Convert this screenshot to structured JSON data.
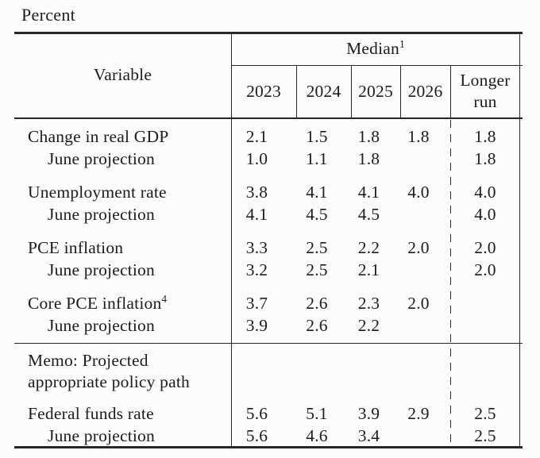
{
  "title": "Percent",
  "table": {
    "header": {
      "variable_label": "Variable",
      "median_label": "Median",
      "median_sup": "1",
      "years": [
        "2023",
        "2024",
        "2025",
        "2026"
      ],
      "longer_run_lines": [
        "Longer",
        "run"
      ]
    },
    "rows": [
      {
        "label": "Change in real GDP",
        "indent": false,
        "group_start": true,
        "values": [
          "2.1",
          "1.5",
          "1.8",
          "1.8"
        ],
        "longer_run": "1.8"
      },
      {
        "label": "June projection",
        "indent": true,
        "group_start": false,
        "values": [
          "1.0",
          "1.1",
          "1.8",
          ""
        ],
        "longer_run": "1.8"
      },
      {
        "label": "Unemployment rate",
        "indent": false,
        "group_start": true,
        "values": [
          "3.8",
          "4.1",
          "4.1",
          "4.0"
        ],
        "longer_run": "4.0"
      },
      {
        "label": "June projection",
        "indent": true,
        "group_start": false,
        "values": [
          "4.1",
          "4.5",
          "4.5",
          ""
        ],
        "longer_run": "4.0"
      },
      {
        "label": "PCE inflation",
        "indent": false,
        "group_start": true,
        "values": [
          "3.3",
          "2.5",
          "2.2",
          "2.0"
        ],
        "longer_run": "2.0"
      },
      {
        "label": "June projection",
        "indent": true,
        "group_start": false,
        "values": [
          "3.2",
          "2.5",
          "2.1",
          ""
        ],
        "longer_run": "2.0"
      },
      {
        "label": "Core PCE inflation",
        "sup": "4",
        "indent": false,
        "group_start": true,
        "values": [
          "3.7",
          "2.6",
          "2.3",
          "2.0"
        ],
        "longer_run": ""
      },
      {
        "label": "June projection",
        "indent": true,
        "group_start": false,
        "values": [
          "3.9",
          "2.6",
          "2.2",
          ""
        ],
        "longer_run": ""
      }
    ],
    "memo_lines": [
      "Memo: Projected",
      "appropriate policy path"
    ],
    "policy_rows": [
      {
        "label": "Federal funds rate",
        "indent": false,
        "group_start": true,
        "values": [
          "5.6",
          "5.1",
          "3.9",
          "2.9"
        ],
        "longer_run": "2.5"
      },
      {
        "label": "June projection",
        "indent": true,
        "group_start": false,
        "values": [
          "5.6",
          "4.6",
          "3.4",
          ""
        ],
        "longer_run": "2.5"
      }
    ],
    "colors": {
      "rule": "#272727",
      "text": "#1c1c1c",
      "background": "#fcfcfc"
    }
  }
}
